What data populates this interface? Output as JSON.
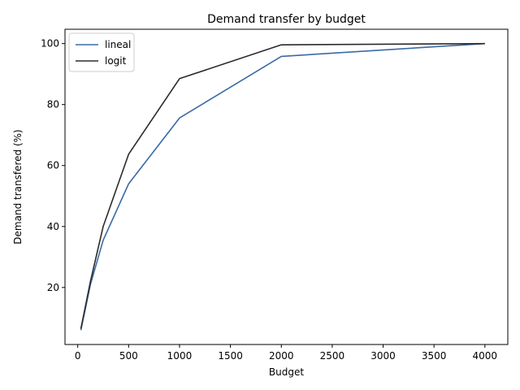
{
  "chart_data": {
    "type": "line",
    "title": "Demand transfer by budget",
    "xlabel": "Budget",
    "ylabel": "Demand transfered (%)",
    "xlim": [
      -125,
      4225
    ],
    "ylim": [
      1.3,
      104.7
    ],
    "xticks": [
      0,
      500,
      1000,
      1500,
      2000,
      2500,
      3000,
      3500,
      4000
    ],
    "yticks": [
      20,
      40,
      60,
      80,
      100
    ],
    "grid": false,
    "legend_position": "top-left",
    "series": [
      {
        "name": "lineal",
        "color": "#3a6aa5",
        "x": [
          31,
          125,
          250,
          500,
          1000,
          2000,
          4000
        ],
        "y": [
          6.0,
          21.0,
          35.5,
          54.0,
          75.6,
          95.8,
          100.0
        ]
      },
      {
        "name": "logit",
        "color": "#2b2b2b",
        "x": [
          31,
          125,
          250,
          500,
          1000,
          2000,
          4000
        ],
        "y": [
          6.5,
          22.0,
          40.0,
          63.7,
          88.5,
          99.6,
          100.0
        ]
      }
    ]
  }
}
